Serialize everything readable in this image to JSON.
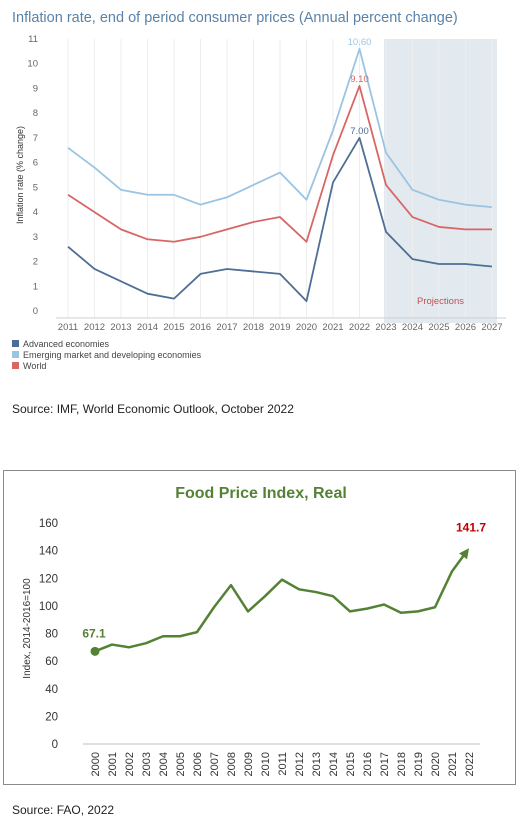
{
  "chart_data": [
    {
      "type": "line",
      "title": "Inflation rate, end of period consumer prices (Annual percent change)",
      "xlabel": "",
      "ylabel": "Inflation rate (% change)",
      "ylim": [
        0,
        11
      ],
      "yticks": [
        0,
        1,
        2,
        3,
        4,
        5,
        6,
        7,
        8,
        9,
        10,
        11
      ],
      "x": [
        "2011",
        "2012",
        "2013",
        "2014",
        "2015",
        "2016",
        "2017",
        "2018",
        "2019",
        "2020",
        "2021",
        "2022",
        "2023",
        "2024",
        "2025",
        "2026",
        "2027"
      ],
      "series": [
        {
          "name": "Advanced economies",
          "color": "#4e6e95",
          "values": [
            2.6,
            1.7,
            1.2,
            0.7,
            0.5,
            1.5,
            1.7,
            1.6,
            1.5,
            0.4,
            5.2,
            7.0,
            3.2,
            2.1,
            1.9,
            1.9,
            1.8
          ]
        },
        {
          "name": "Emerging market and developing economies",
          "color": "#9bc4e2",
          "values": [
            6.6,
            5.8,
            4.9,
            4.7,
            4.7,
            4.3,
            4.6,
            5.1,
            5.6,
            4.5,
            7.3,
            10.6,
            6.4,
            4.9,
            4.5,
            4.3,
            4.2
          ]
        },
        {
          "name": "World",
          "color": "#d96666",
          "values": [
            4.7,
            4.0,
            3.3,
            2.9,
            2.8,
            3.0,
            3.3,
            3.6,
            3.8,
            2.8,
            6.3,
            9.1,
            5.1,
            3.8,
            3.4,
            3.3,
            3.3
          ]
        }
      ],
      "data_labels": [
        {
          "series": "Emerging market and developing economies",
          "x": "2022",
          "text": "10.60"
        },
        {
          "series": "World",
          "x": "2022",
          "text": "9.10"
        },
        {
          "series": "Advanced economies",
          "x": "2022",
          "text": "7.00"
        }
      ],
      "shaded_region": {
        "from": "2023",
        "to": "2027",
        "label": "Projections",
        "color": "#e3eaef"
      },
      "legend_position": "bottom-left",
      "grid": false
    },
    {
      "type": "line",
      "title": "Food Price Index, Real",
      "xlabel": "",
      "ylabel": "Index, 2014-2016=100",
      "ylim": [
        0,
        160
      ],
      "yticks": [
        0,
        20,
        40,
        60,
        80,
        100,
        120,
        140,
        160
      ],
      "x": [
        "2000",
        "2001",
        "2002",
        "2003",
        "2004",
        "2005",
        "2006",
        "2007",
        "2008",
        "2009",
        "2010",
        "2011",
        "2012",
        "2013",
        "2014",
        "2015",
        "2016",
        "2017",
        "2018",
        "2019",
        "2020",
        "2021",
        "2022"
      ],
      "series": [
        {
          "color": "#548235",
          "values": [
            67.1,
            72,
            70,
            73,
            78,
            78,
            81,
            99,
            115,
            96,
            107,
            119,
            112,
            110,
            107,
            96,
            98,
            101,
            95,
            96,
            99,
            125,
            141.7
          ]
        }
      ],
      "data_labels": [
        {
          "x": "2000",
          "text": "67.1",
          "color": "#548235"
        },
        {
          "x": "2022",
          "text": "141.7",
          "color": "#c00000"
        }
      ],
      "grid": false
    }
  ],
  "sources": {
    "chart1": "Source:  IMF, World Economic Outlook, October 2022",
    "chart2": "Source: FAO, 2022"
  }
}
